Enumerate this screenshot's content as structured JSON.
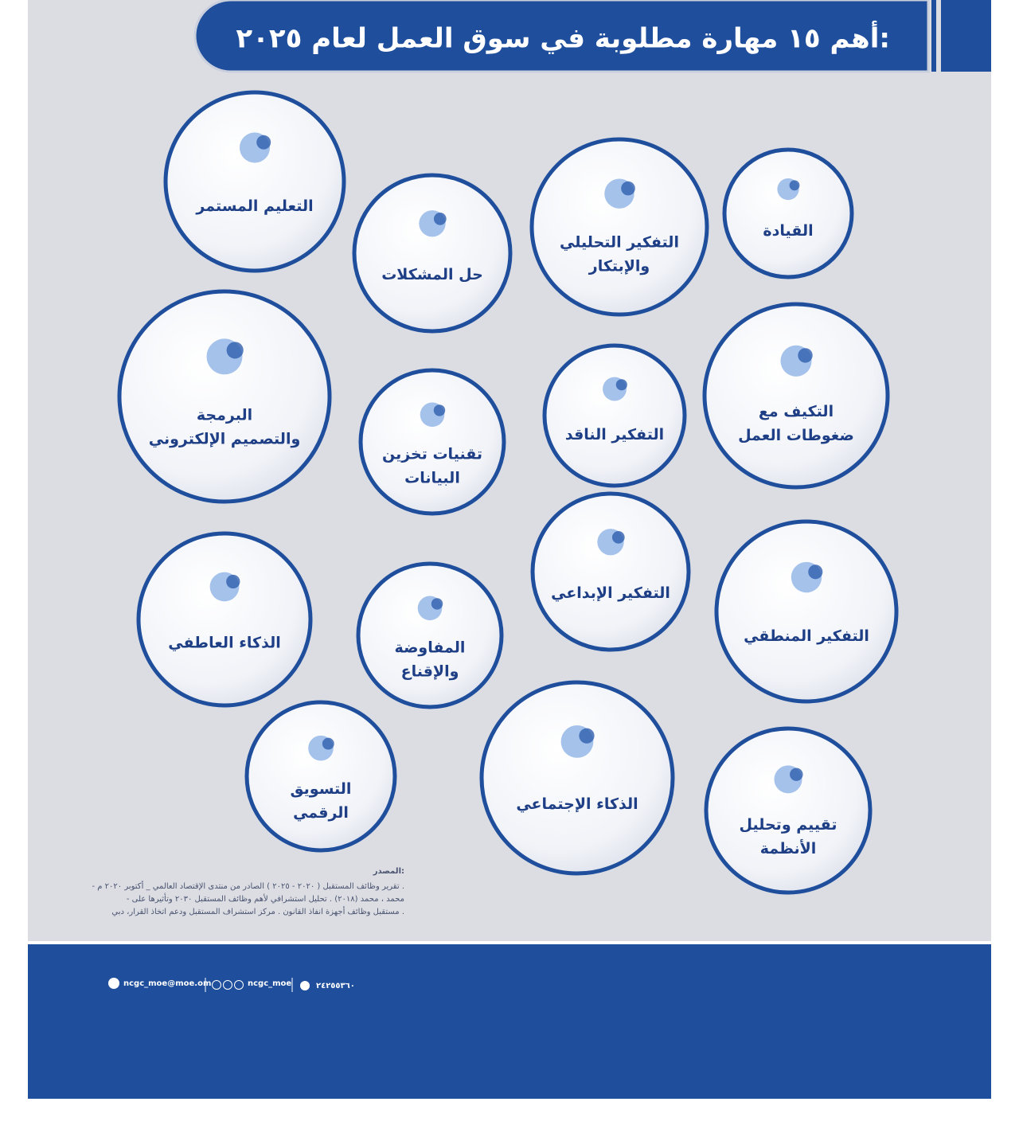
{
  "header": {
    "title": "أهم ١٥ مهارة مطلوبة في سوق العمل لعام ٢٠٢٥:"
  },
  "skills": [
    {
      "lines": [
        "التعليم المستمر"
      ]
    },
    {
      "lines": [
        "القيادة"
      ]
    },
    {
      "lines": [
        "التفكير التحليلي",
        "والإبتكار"
      ]
    },
    {
      "lines": [
        "حل المشكلات"
      ]
    },
    {
      "lines": [
        "البرمجة",
        "والتصميم الإلكتروني"
      ]
    },
    {
      "lines": [
        "التكيف مع",
        "ضغوطات العمل"
      ]
    },
    {
      "lines": [
        "التفكير الناقد"
      ]
    },
    {
      "lines": [
        "تقنيات تخزين",
        "البيانات"
      ]
    },
    {
      "lines": [
        "التفكير الإبداعي"
      ]
    },
    {
      "lines": [
        "الذكاء العاطفي"
      ]
    },
    {
      "lines": [
        "التفكير المنطقي"
      ]
    },
    {
      "lines": [
        "المفاوضة",
        "والإقناع"
      ]
    },
    {
      "lines": [
        "التسويق",
        "الرقمي"
      ]
    },
    {
      "lines": [
        "الذكاء الإجتماعي"
      ]
    },
    {
      "lines": [
        "تقييم وتحليل",
        "الأنظمة"
      ]
    }
  ],
  "sources": {
    "heading": "المصدر:",
    "lines": [
      "- تقرير وظائف المستقبل ( ٢٠٢٠ - ٢٠٢٥ ) الصادر من منتدى الإقتصاد العالمي _ أكتوبر ٢٠٢٠ م .",
      "- محمد ، محمد (٢٠١٨) . تحليل استشرافي لأهم وظائف المستقبل ٢٠٣٠ وتأثيرها على",
      "مستقبل وظائف أجهزة انفاذ القانون . مركز استشراف المستقبل ودعم اتخاذ القرار، دبي ."
    ]
  },
  "footer": {
    "email": "ncgc_moe@moe.om",
    "social": "ncgc_moe",
    "phone": "٢٤٢٥٥٣٦٠"
  }
}
